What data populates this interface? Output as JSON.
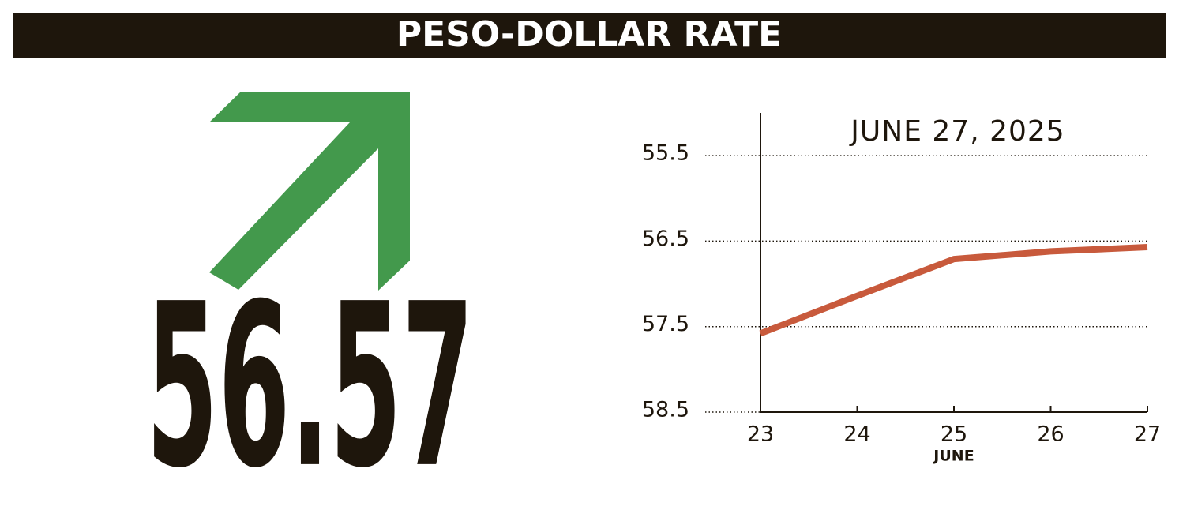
{
  "title": "PESO-DOLLAR RATE",
  "current_rate": 56.57,
  "chart_data": {
    "type": "line",
    "subtitle": "JUNE 27, 2025",
    "x": [
      23,
      24,
      25,
      26,
      27
    ],
    "values": [
      57.58,
      57.14,
      56.71,
      56.62,
      56.57
    ],
    "color": "#c85a3c",
    "xlabel": "JUNE",
    "xlim": [
      23,
      27
    ],
    "xticks": [
      23,
      24,
      25,
      26,
      27
    ],
    "ylim": [
      55,
      58.5
    ],
    "yticks": [
      55.5,
      56.5,
      57.5,
      58.5
    ],
    "y_inverted": true,
    "grid": true
  }
}
